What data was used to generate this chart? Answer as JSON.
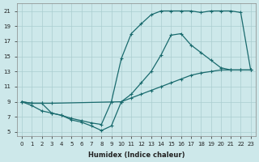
{
  "title": "",
  "xlabel": "Humidex (Indice chaleur)",
  "ylabel": "",
  "bg_color": "#cde8ea",
  "grid_color": "#aacdd0",
  "line_color": "#1a6b6e",
  "figsize": [
    3.2,
    2.0
  ],
  "dpi": 100,
  "xlim": [
    -0.5,
    23.5
  ],
  "ylim": [
    4.5,
    22
  ],
  "xticks": [
    0,
    1,
    2,
    3,
    4,
    5,
    6,
    7,
    8,
    9,
    10,
    11,
    12,
    13,
    14,
    15,
    16,
    17,
    18,
    19,
    20,
    21,
    22,
    23
  ],
  "yticks": [
    5,
    7,
    9,
    11,
    13,
    15,
    17,
    19,
    21
  ],
  "line1_x": [
    0,
    1,
    2,
    3,
    4,
    5,
    6,
    7,
    8,
    9,
    10,
    11,
    12,
    13,
    14,
    15,
    16,
    17,
    18,
    19,
    20,
    21,
    22,
    23
  ],
  "line1_y": [
    9.0,
    8.8,
    8.8,
    7.5,
    7.2,
    6.8,
    6.5,
    6.2,
    6.0,
    9.0,
    14.7,
    18.0,
    19.3,
    20.5,
    21.0,
    21.0,
    21.0,
    21.0,
    20.8,
    21.0,
    21.0,
    21.0,
    20.8,
    13.2
  ],
  "line2_x": [
    0,
    1,
    2,
    3,
    4,
    5,
    6,
    7,
    8,
    9,
    10,
    11,
    12,
    13,
    14,
    15,
    16,
    17,
    18,
    19,
    20,
    21,
    22,
    23
  ],
  "line2_y": [
    9.0,
    8.5,
    7.8,
    7.5,
    7.2,
    6.6,
    6.3,
    5.8,
    5.2,
    5.8,
    9.0,
    10.0,
    11.5,
    13.0,
    15.2,
    17.8,
    18.0,
    16.5,
    15.5,
    14.5,
    13.5,
    13.2,
    13.2,
    13.2
  ],
  "line3_x": [
    0,
    1,
    2,
    3,
    10,
    11,
    12,
    13,
    14,
    15,
    16,
    17,
    18,
    19,
    20,
    21,
    22,
    23
  ],
  "line3_y": [
    9.0,
    8.8,
    8.8,
    8.8,
    9.0,
    9.5,
    10.0,
    10.5,
    11.0,
    11.5,
    12.0,
    12.5,
    12.8,
    13.0,
    13.2,
    13.2,
    13.2,
    13.2
  ]
}
